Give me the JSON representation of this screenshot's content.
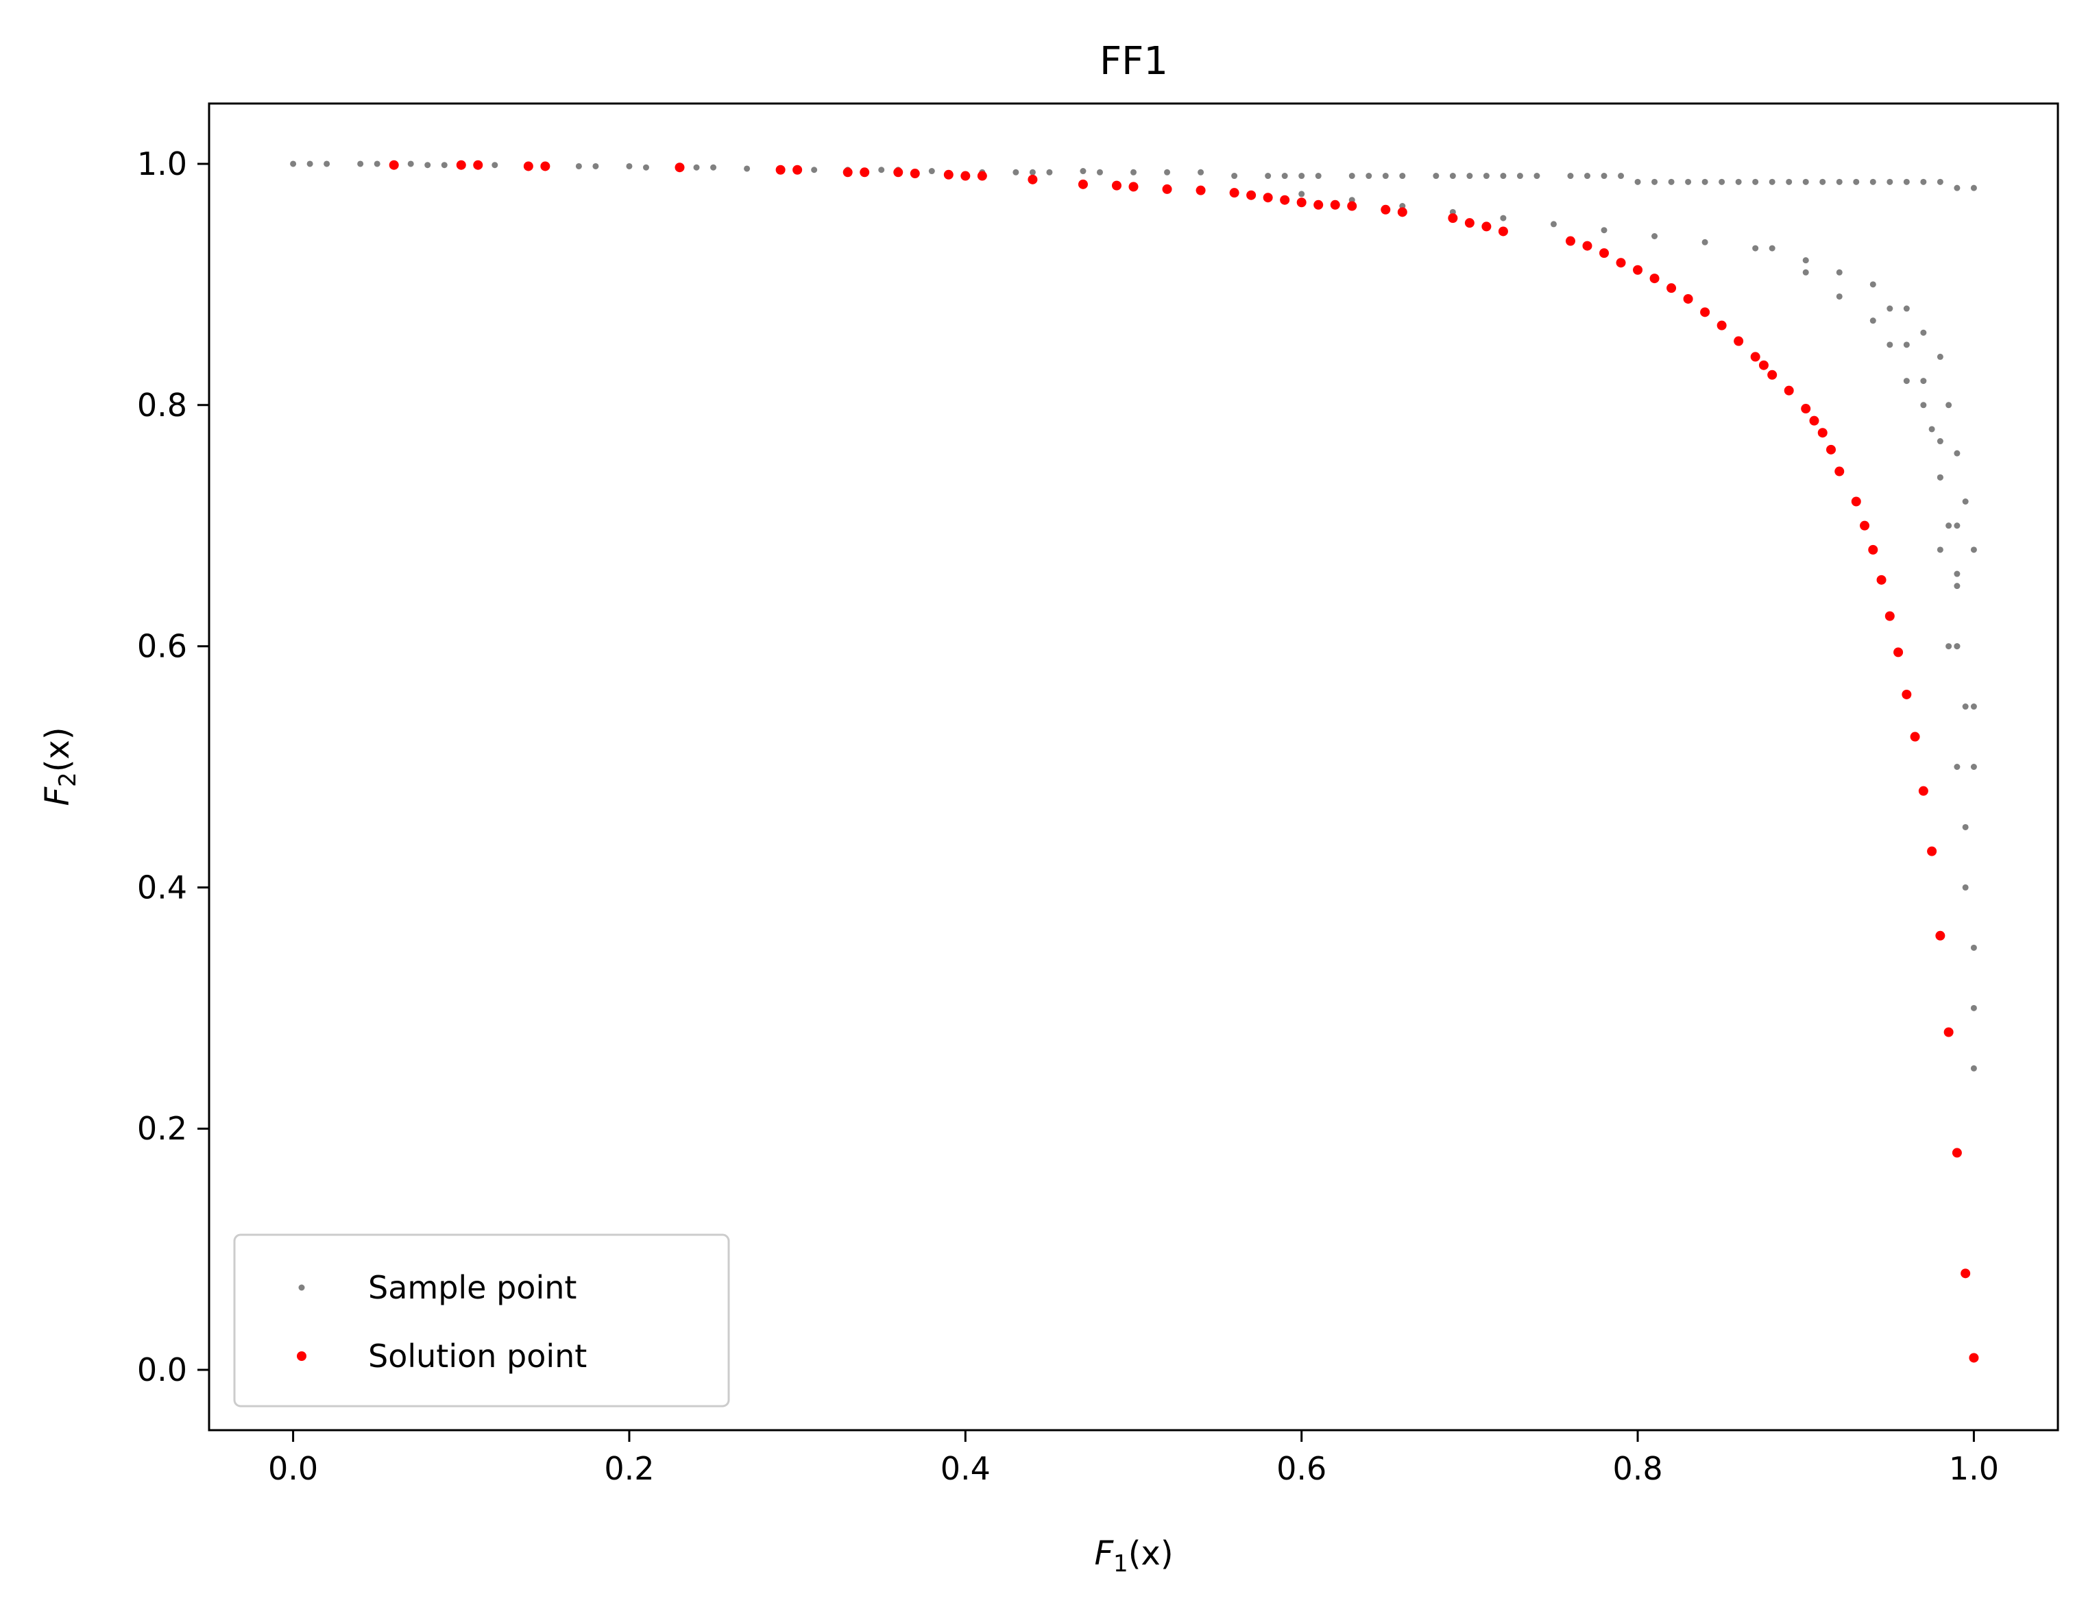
{
  "chart_data": {
    "type": "scatter",
    "title": "FF1",
    "xlabel": {
      "base": "F",
      "sub": "1",
      "arg": "(x)"
    },
    "ylabel": {
      "base": "F",
      "sub": "2",
      "arg": "(x)"
    },
    "xlim": [
      -0.05,
      1.05
    ],
    "ylim": [
      -0.05,
      1.05
    ],
    "xticks": [
      0.0,
      0.2,
      0.4,
      0.6,
      0.8,
      1.0
    ],
    "xtick_labels": [
      "0.0",
      "0.2",
      "0.4",
      "0.6",
      "0.8",
      "1.0"
    ],
    "yticks": [
      0.0,
      0.2,
      0.4,
      0.6,
      0.8,
      1.0
    ],
    "ytick_labels": [
      "0.0",
      "0.2",
      "0.4",
      "0.6",
      "0.8",
      "1.0"
    ],
    "grid": false,
    "legend": {
      "position": "lower-left"
    },
    "series": [
      {
        "name": "Sample point",
        "color": "#808080",
        "x": [
          0.0,
          0.01,
          0.02,
          0.04,
          0.05,
          0.07,
          0.08,
          0.09,
          0.12,
          0.15,
          0.17,
          0.18,
          0.2,
          0.21,
          0.24,
          0.25,
          0.27,
          0.29,
          0.31,
          0.33,
          0.35,
          0.36,
          0.38,
          0.41,
          0.43,
          0.44,
          0.45,
          0.47,
          0.48,
          0.5,
          0.52,
          0.54,
          0.56,
          0.58,
          0.59,
          0.6,
          0.61,
          0.63,
          0.64,
          0.65,
          0.66,
          0.68,
          0.69,
          0.7,
          0.71,
          0.72,
          0.73,
          0.74,
          0.76,
          0.77,
          0.78,
          0.79,
          0.8,
          0.81,
          0.82,
          0.83,
          0.84,
          0.85,
          0.86,
          0.87,
          0.88,
          0.89,
          0.9,
          0.91,
          0.92,
          0.93,
          0.94,
          0.95,
          0.96,
          0.97,
          0.98,
          0.99,
          1.0,
          0.6,
          0.63,
          0.66,
          0.69,
          0.72,
          0.75,
          0.78,
          0.81,
          0.84,
          0.87,
          0.9,
          0.92,
          0.94,
          0.96,
          0.97,
          0.98,
          0.985,
          0.99,
          0.995,
          1.0,
          0.88,
          0.9,
          0.92,
          0.94,
          0.95,
          0.96,
          0.97,
          0.98,
          0.98,
          0.99,
          0.99,
          0.99,
          1.0,
          1.0,
          0.95,
          0.96,
          0.97,
          0.975,
          0.98,
          0.985,
          0.99,
          0.99,
          0.995,
          0.995,
          1.0,
          1.0,
          0.98,
          0.985,
          0.99,
          0.995,
          1.0
        ],
        "y": [
          1.0,
          1.0,
          1.0,
          1.0,
          1.0,
          1.0,
          0.999,
          0.999,
          0.999,
          0.998,
          0.998,
          0.998,
          0.998,
          0.997,
          0.997,
          0.997,
          0.996,
          0.996,
          0.995,
          0.995,
          0.995,
          0.995,
          0.994,
          0.993,
          0.993,
          0.993,
          0.993,
          0.994,
          0.993,
          0.993,
          0.993,
          0.993,
          0.99,
          0.99,
          0.99,
          0.99,
          0.99,
          0.99,
          0.99,
          0.99,
          0.99,
          0.99,
          0.99,
          0.99,
          0.99,
          0.99,
          0.99,
          0.99,
          0.99,
          0.99,
          0.99,
          0.99,
          0.985,
          0.985,
          0.985,
          0.985,
          0.985,
          0.985,
          0.985,
          0.985,
          0.985,
          0.985,
          0.985,
          0.985,
          0.985,
          0.985,
          0.985,
          0.985,
          0.985,
          0.985,
          0.985,
          0.98,
          0.98,
          0.975,
          0.97,
          0.965,
          0.96,
          0.955,
          0.95,
          0.945,
          0.94,
          0.935,
          0.93,
          0.92,
          0.91,
          0.9,
          0.88,
          0.86,
          0.84,
          0.8,
          0.76,
          0.72,
          0.68,
          0.93,
          0.91,
          0.89,
          0.87,
          0.85,
          0.82,
          0.8,
          0.77,
          0.74,
          0.7,
          0.65,
          0.6,
          0.55,
          0.5,
          0.88,
          0.85,
          0.82,
          0.78,
          0.74,
          0.7,
          0.66,
          0.6,
          0.55,
          0.45,
          0.35,
          0.25,
          0.68,
          0.6,
          0.5,
          0.4,
          0.3
        ]
      },
      {
        "name": "Solution point",
        "color": "#ff0000",
        "x": [
          0.06,
          0.1,
          0.11,
          0.14,
          0.15,
          0.23,
          0.29,
          0.3,
          0.33,
          0.34,
          0.36,
          0.37,
          0.39,
          0.4,
          0.41,
          0.44,
          0.47,
          0.49,
          0.5,
          0.52,
          0.54,
          0.56,
          0.57,
          0.58,
          0.59,
          0.6,
          0.61,
          0.62,
          0.63,
          0.65,
          0.66,
          0.69,
          0.7,
          0.71,
          0.72,
          0.76,
          0.77,
          0.78,
          0.79,
          0.8,
          0.81,
          0.82,
          0.83,
          0.84,
          0.85,
          0.86,
          0.87,
          0.875,
          0.88,
          0.89,
          0.9,
          0.905,
          0.91,
          0.915,
          0.92,
          0.93,
          0.935,
          0.94,
          0.945,
          0.95,
          0.955,
          0.96,
          0.965,
          0.97,
          0.975,
          0.98,
          0.985,
          0.99,
          0.995,
          1.0
        ],
        "y": [
          0.999,
          0.999,
          0.999,
          0.998,
          0.998,
          0.997,
          0.995,
          0.995,
          0.993,
          0.993,
          0.993,
          0.992,
          0.991,
          0.99,
          0.99,
          0.987,
          0.983,
          0.982,
          0.981,
          0.979,
          0.978,
          0.976,
          0.974,
          0.972,
          0.97,
          0.968,
          0.966,
          0.966,
          0.965,
          0.962,
          0.96,
          0.955,
          0.951,
          0.948,
          0.944,
          0.936,
          0.932,
          0.926,
          0.918,
          0.912,
          0.905,
          0.897,
          0.888,
          0.877,
          0.866,
          0.853,
          0.84,
          0.833,
          0.825,
          0.812,
          0.797,
          0.787,
          0.777,
          0.763,
          0.745,
          0.72,
          0.7,
          0.68,
          0.655,
          0.625,
          0.595,
          0.56,
          0.525,
          0.48,
          0.43,
          0.36,
          0.28,
          0.18,
          0.08,
          0.01
        ]
      }
    ]
  }
}
